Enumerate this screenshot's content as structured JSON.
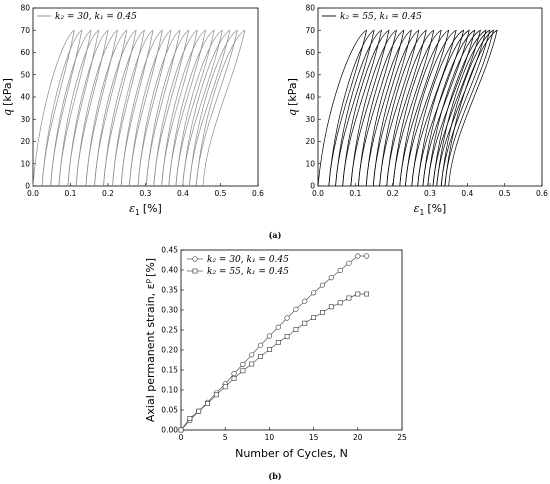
{
  "chart_data": [
    {
      "id": "a-left",
      "type": "line",
      "panel": "(a)",
      "xlabel_symbol": "ε",
      "xlabel_sub": "1",
      "xlabel_unit": "[%]",
      "ylabel_symbol": "q",
      "ylabel_unit": "[kPa]",
      "xlim": [
        0,
        0.6
      ],
      "ylim": [
        0,
        80
      ],
      "xticks": [
        "0.0",
        "0.1",
        "0.2",
        "0.3",
        "0.4",
        "0.5",
        "0.6"
      ],
      "yticks": [
        "0",
        "10",
        "20",
        "30",
        "40",
        "50",
        "60",
        "70",
        "80"
      ],
      "legend": "k₂ = 30, k₁ = 0.45",
      "legend_position": "top-left",
      "color": "#8c8c8c",
      "q_max": 70,
      "cycles": 21,
      "loop_starts": [
        0.0,
        0.024,
        0.047,
        0.069,
        0.093,
        0.115,
        0.141,
        0.164,
        0.188,
        0.212,
        0.235,
        0.257,
        0.28,
        0.302,
        0.322,
        0.343,
        0.362,
        0.381,
        0.399,
        0.417,
        0.435
      ],
      "loop_peaks": [
        0.11,
        0.13,
        0.155,
        0.175,
        0.2,
        0.225,
        0.25,
        0.275,
        0.297,
        0.32,
        0.345,
        0.368,
        0.392,
        0.415,
        0.438,
        0.46,
        0.483,
        0.505,
        0.525,
        0.545,
        0.565
      ]
    },
    {
      "id": "a-right",
      "type": "line",
      "panel": "(a)",
      "xlabel_symbol": "ε",
      "xlabel_sub": "1",
      "xlabel_unit": "[%]",
      "ylabel_symbol": "q",
      "ylabel_unit": "[kPa]",
      "xlim": [
        0,
        0.6
      ],
      "ylim": [
        0,
        80
      ],
      "xticks": [
        "0.0",
        "0.1",
        "0.2",
        "0.3",
        "0.4",
        "0.5",
        "0.6"
      ],
      "yticks": [
        "0",
        "10",
        "20",
        "30",
        "40",
        "50",
        "60",
        "70",
        "80"
      ],
      "legend": "k₂ = 55, k₁ = 0.45",
      "legend_position": "top-left",
      "color": "#000000",
      "q_max": 70,
      "cycles": 21,
      "loop_starts": [
        0.0,
        0.029,
        0.047,
        0.066,
        0.088,
        0.108,
        0.129,
        0.148,
        0.165,
        0.184,
        0.201,
        0.219,
        0.234,
        0.251,
        0.267,
        0.281,
        0.294,
        0.308,
        0.318,
        0.33,
        0.34
      ],
      "loop_peaks": [
        0.13,
        0.15,
        0.17,
        0.19,
        0.21,
        0.23,
        0.25,
        0.27,
        0.29,
        0.31,
        0.33,
        0.35,
        0.37,
        0.39,
        0.405,
        0.42,
        0.435,
        0.45,
        0.46,
        0.47,
        0.48
      ]
    },
    {
      "id": "b",
      "type": "line",
      "panel": "(b)",
      "xlabel": "Number of Cycles, N",
      "ylabel": "Axial permanent strain, ε",
      "ylabel_sup": "p",
      "ylabel_unit": "[%]",
      "xlim": [
        0,
        25
      ],
      "ylim": [
        0,
        0.45
      ],
      "xticks": [
        "0",
        "5",
        "10",
        "15",
        "20",
        "25"
      ],
      "yticks": [
        "0.00",
        "0.05",
        "0.10",
        "0.15",
        "0.20",
        "0.25",
        "0.30",
        "0.35",
        "0.40",
        "0.45"
      ],
      "x": [
        0,
        1,
        2,
        3,
        4,
        5,
        6,
        7,
        8,
        9,
        10,
        11,
        12,
        13,
        14,
        15,
        16,
        17,
        18,
        19,
        20,
        21
      ],
      "series": [
        {
          "name": "k₂ = 30, k₁ = 0.45",
          "marker": "circle",
          "values": [
            0.0,
            0.024,
            0.047,
            0.069,
            0.093,
            0.115,
            0.141,
            0.164,
            0.188,
            0.212,
            0.235,
            0.257,
            0.28,
            0.302,
            0.322,
            0.343,
            0.362,
            0.381,
            0.399,
            0.417,
            0.435,
            0.435
          ]
        },
        {
          "name": "k₂ = 55, k₁ = 0.45",
          "marker": "square",
          "values": [
            0.0,
            0.029,
            0.047,
            0.066,
            0.088,
            0.108,
            0.129,
            0.148,
            0.165,
            0.184,
            0.201,
            0.219,
            0.234,
            0.251,
            0.267,
            0.281,
            0.294,
            0.308,
            0.318,
            0.33,
            0.34,
            0.34
          ]
        }
      ],
      "legend_position": "top-left"
    }
  ],
  "captions": {
    "a": "(a)",
    "b": "(b)"
  }
}
